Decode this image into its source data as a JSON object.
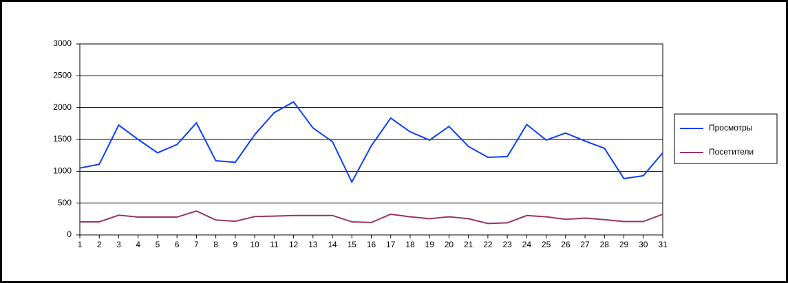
{
  "chart_data": {
    "type": "line",
    "categories": [
      "1",
      "2",
      "3",
      "4",
      "5",
      "6",
      "7",
      "8",
      "9",
      "10",
      "11",
      "12",
      "13",
      "14",
      "15",
      "16",
      "17",
      "18",
      "19",
      "20",
      "21",
      "22",
      "23",
      "24",
      "25",
      "26",
      "27",
      "28",
      "29",
      "30",
      "31"
    ],
    "series": [
      {
        "name": "Просмотры",
        "color": "#0a3cff",
        "values": [
          1050,
          1110,
          1725,
          1500,
          1290,
          1420,
          1760,
          1165,
          1140,
          1575,
          1920,
          2090,
          1680,
          1465,
          830,
          1400,
          1835,
          1620,
          1490,
          1705,
          1390,
          1220,
          1230,
          1735,
          1490,
          1600,
          1475,
          1360,
          885,
          930,
          1290
        ]
      },
      {
        "name": "Посетители",
        "color": "#993366",
        "values": [
          205,
          205,
          310,
          280,
          280,
          280,
          375,
          235,
          215,
          288,
          295,
          305,
          305,
          305,
          205,
          195,
          325,
          285,
          255,
          285,
          255,
          180,
          190,
          305,
          285,
          245,
          265,
          240,
          210,
          210,
          325
        ]
      }
    ],
    "ylim": [
      0,
      3000
    ],
    "yticks": [
      0,
      500,
      1000,
      1500,
      2000,
      2500,
      3000
    ],
    "grid": true,
    "legend": "right"
  }
}
